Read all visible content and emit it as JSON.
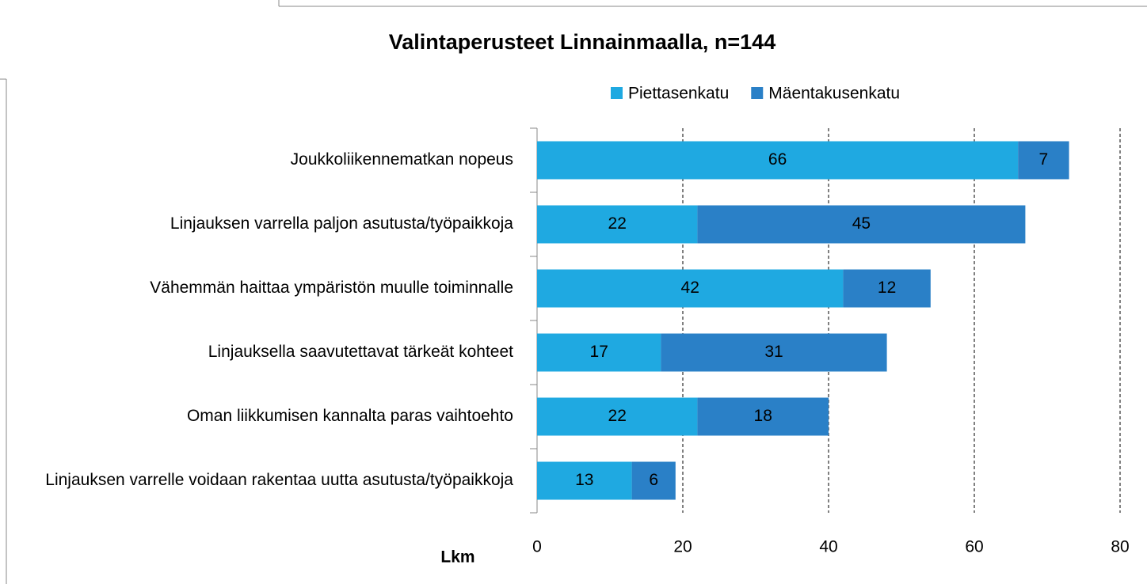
{
  "chart_data": {
    "type": "stacked_bar_horizontal",
    "title": "Valintaperusteet Linnainmaalla, n=144",
    "x_label": "Lkm",
    "categories": [
      "Joukkoliikennematkan nopeus",
      "Linjauksen varrella paljon asutusta/työpaikkoja",
      "Vähemmän haittaa ympäristön muulle toiminnalle",
      "Linjauksella saavutettavat tärkeät kohteet",
      "Oman liikkumisen kannalta paras vaihtoehto",
      "Linjauksen varrelle voidaan rakentaa uutta asutusta/työpaikkoja"
    ],
    "series": [
      {
        "name": "Piettasenkatu",
        "color": "#1fa9e1",
        "values": [
          66,
          22,
          42,
          17,
          22,
          13
        ]
      },
      {
        "name": "Mäentakusenkatu",
        "color": "#2a80c7",
        "values": [
          7,
          45,
          12,
          31,
          18,
          6
        ]
      }
    ],
    "xlim": [
      0,
      80
    ],
    "xticks": [
      0,
      20,
      40,
      60,
      80
    ],
    "grid": true,
    "legend": "top"
  }
}
